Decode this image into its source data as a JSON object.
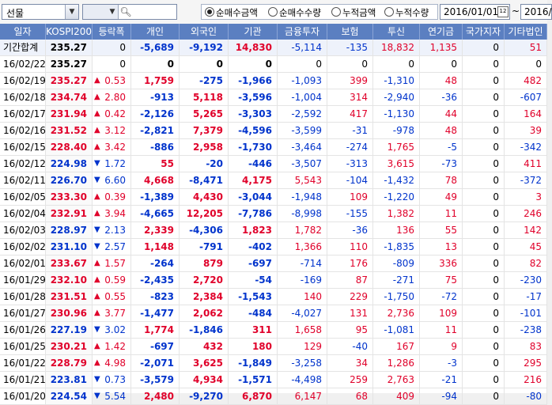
{
  "toolbar": {
    "market_select": "선물",
    "search_placeholder": "",
    "radios": [
      {
        "label": "순매수금액",
        "selected": true
      },
      {
        "label": "순매수수량",
        "selected": false
      },
      {
        "label": "누적금액",
        "selected": false
      },
      {
        "label": "누적수량",
        "selected": false
      }
    ],
    "date_from": "2016/01/01",
    "date_sep": "~",
    "date_to": "2016/"
  },
  "columns": [
    "일자",
    "KOSPI200",
    "등락폭",
    "개인",
    "외국인",
    "기관",
    "금융투자",
    "보험",
    "투신",
    "연기금",
    "국가지자",
    "기타법인"
  ],
  "summary_rows": [
    {
      "date": "기간합계",
      "kospi": "235.27",
      "chg_dir": "",
      "chg": "0",
      "c": [
        "-5,689",
        "-9,192",
        "14,830",
        "-5,114",
        "-135",
        "18,832",
        "1,135",
        "0",
        "51"
      ],
      "s": [
        "b",
        "b",
        "r",
        "b",
        "b",
        "r",
        "r",
        "k",
        "r"
      ]
    },
    {
      "date": "16/02/22",
      "kospi": "235.27",
      "chg_dir": "",
      "chg": "0",
      "c": [
        "0",
        "0",
        "0",
        "0",
        "0",
        "0",
        "0",
        "0",
        "0"
      ],
      "s": [
        "k",
        "k",
        "k",
        "k",
        "k",
        "k",
        "k",
        "k",
        "k"
      ]
    }
  ],
  "rows": [
    {
      "date": "16/02/19",
      "kospi": "235.27",
      "kc": "r",
      "chg_dir": "▲",
      "chg": "0.53",
      "c": [
        "1,759",
        "-275",
        "-1,966",
        "-1,093",
        "399",
        "-1,310",
        "48",
        "0",
        "482"
      ],
      "s": [
        "r",
        "b",
        "b",
        "b",
        "r",
        "b",
        "r",
        "k",
        "r"
      ]
    },
    {
      "date": "16/02/18",
      "kospi": "234.74",
      "kc": "r",
      "chg_dir": "▲",
      "chg": "2.80",
      "c": [
        "-913",
        "5,118",
        "-3,596",
        "-1,004",
        "314",
        "-2,940",
        "-36",
        "0",
        "-607"
      ],
      "s": [
        "b",
        "r",
        "b",
        "b",
        "r",
        "b",
        "b",
        "k",
        "b"
      ]
    },
    {
      "date": "16/02/17",
      "kospi": "231.94",
      "kc": "r",
      "chg_dir": "▲",
      "chg": "0.42",
      "c": [
        "-2,126",
        "5,265",
        "-3,303",
        "-2,592",
        "417",
        "-1,130",
        "44",
        "0",
        "164"
      ],
      "s": [
        "b",
        "r",
        "b",
        "b",
        "r",
        "b",
        "r",
        "k",
        "r"
      ]
    },
    {
      "date": "16/02/16",
      "kospi": "231.52",
      "kc": "r",
      "chg_dir": "▲",
      "chg": "3.12",
      "c": [
        "-2,821",
        "7,379",
        "-4,596",
        "-3,599",
        "-31",
        "-978",
        "48",
        "0",
        "39"
      ],
      "s": [
        "b",
        "r",
        "b",
        "b",
        "b",
        "b",
        "r",
        "k",
        "r"
      ]
    },
    {
      "date": "16/02/15",
      "kospi": "228.40",
      "kc": "r",
      "chg_dir": "▲",
      "chg": "3.42",
      "c": [
        "-886",
        "2,958",
        "-1,730",
        "-3,464",
        "-274",
        "1,765",
        "-5",
        "0",
        "-342"
      ],
      "s": [
        "b",
        "r",
        "b",
        "b",
        "b",
        "r",
        "b",
        "k",
        "b"
      ]
    },
    {
      "date": "16/02/12",
      "kospi": "224.98",
      "kc": "b",
      "chg_dir": "▼",
      "chg": "1.72",
      "c": [
        "55",
        "-20",
        "-446",
        "-3,507",
        "-313",
        "3,615",
        "-73",
        "0",
        "411"
      ],
      "s": [
        "r",
        "b",
        "b",
        "b",
        "b",
        "r",
        "b",
        "k",
        "r"
      ]
    },
    {
      "date": "16/02/11",
      "kospi": "226.70",
      "kc": "b",
      "chg_dir": "▼",
      "chg": "6.60",
      "c": [
        "4,668",
        "-8,471",
        "4,175",
        "5,543",
        "-104",
        "-1,432",
        "78",
        "0",
        "-372"
      ],
      "s": [
        "r",
        "b",
        "r",
        "r",
        "b",
        "b",
        "r",
        "k",
        "b"
      ]
    },
    {
      "date": "16/02/05",
      "kospi": "233.30",
      "kc": "r",
      "chg_dir": "▲",
      "chg": "0.39",
      "c": [
        "-1,389",
        "4,430",
        "-3,044",
        "-1,948",
        "109",
        "-1,220",
        "49",
        "0",
        "3"
      ],
      "s": [
        "b",
        "r",
        "b",
        "b",
        "r",
        "b",
        "r",
        "k",
        "r"
      ]
    },
    {
      "date": "16/02/04",
      "kospi": "232.91",
      "kc": "r",
      "chg_dir": "▲",
      "chg": "3.94",
      "c": [
        "-4,665",
        "12,205",
        "-7,786",
        "-8,998",
        "-155",
        "1,382",
        "11",
        "0",
        "246"
      ],
      "s": [
        "b",
        "r",
        "b",
        "b",
        "b",
        "r",
        "r",
        "k",
        "r"
      ]
    },
    {
      "date": "16/02/03",
      "kospi": "228.97",
      "kc": "b",
      "chg_dir": "▼",
      "chg": "2.13",
      "c": [
        "2,339",
        "-4,306",
        "1,823",
        "1,782",
        "-36",
        "136",
        "55",
        "0",
        "142"
      ],
      "s": [
        "r",
        "b",
        "r",
        "r",
        "b",
        "r",
        "r",
        "k",
        "r"
      ]
    },
    {
      "date": "16/02/02",
      "kospi": "231.10",
      "kc": "b",
      "chg_dir": "▼",
      "chg": "2.57",
      "c": [
        "1,148",
        "-791",
        "-402",
        "1,366",
        "110",
        "-1,835",
        "13",
        "0",
        "45"
      ],
      "s": [
        "r",
        "b",
        "b",
        "r",
        "r",
        "b",
        "r",
        "k",
        "r"
      ]
    },
    {
      "date": "16/02/01",
      "kospi": "233.67",
      "kc": "r",
      "chg_dir": "▲",
      "chg": "1.57",
      "c": [
        "-264",
        "879",
        "-697",
        "-714",
        "176",
        "-809",
        "336",
        "0",
        "82"
      ],
      "s": [
        "b",
        "r",
        "b",
        "b",
        "r",
        "b",
        "r",
        "k",
        "r"
      ]
    },
    {
      "date": "16/01/29",
      "kospi": "232.10",
      "kc": "r",
      "chg_dir": "▲",
      "chg": "0.59",
      "c": [
        "-2,435",
        "2,720",
        "-54",
        "-169",
        "87",
        "-271",
        "75",
        "0",
        "-230"
      ],
      "s": [
        "b",
        "r",
        "b",
        "b",
        "r",
        "b",
        "r",
        "k",
        "b"
      ]
    },
    {
      "date": "16/01/28",
      "kospi": "231.51",
      "kc": "r",
      "chg_dir": "▲",
      "chg": "0.55",
      "c": [
        "-823",
        "2,384",
        "-1,543",
        "140",
        "229",
        "-1,750",
        "-72",
        "0",
        "-17"
      ],
      "s": [
        "b",
        "r",
        "b",
        "r",
        "r",
        "b",
        "b",
        "k",
        "b"
      ]
    },
    {
      "date": "16/01/27",
      "kospi": "230.96",
      "kc": "r",
      "chg_dir": "▲",
      "chg": "3.77",
      "c": [
        "-1,477",
        "2,062",
        "-484",
        "-4,027",
        "131",
        "2,736",
        "109",
        "0",
        "-101"
      ],
      "s": [
        "b",
        "r",
        "b",
        "b",
        "r",
        "r",
        "r",
        "k",
        "b"
      ]
    },
    {
      "date": "16/01/26",
      "kospi": "227.19",
      "kc": "b",
      "chg_dir": "▼",
      "chg": "3.02",
      "c": [
        "1,774",
        "-1,846",
        "311",
        "1,658",
        "95",
        "-1,081",
        "11",
        "0",
        "-238"
      ],
      "s": [
        "r",
        "b",
        "r",
        "r",
        "r",
        "b",
        "r",
        "k",
        "b"
      ]
    },
    {
      "date": "16/01/25",
      "kospi": "230.21",
      "kc": "r",
      "chg_dir": "▲",
      "chg": "1.42",
      "c": [
        "-697",
        "432",
        "180",
        "129",
        "-40",
        "167",
        "9",
        "0",
        "83"
      ],
      "s": [
        "b",
        "r",
        "r",
        "r",
        "b",
        "r",
        "r",
        "k",
        "r"
      ]
    },
    {
      "date": "16/01/22",
      "kospi": "228.79",
      "kc": "r",
      "chg_dir": "▲",
      "chg": "4.98",
      "c": [
        "-2,071",
        "3,625",
        "-1,849",
        "-3,258",
        "34",
        "1,286",
        "-3",
        "0",
        "295"
      ],
      "s": [
        "b",
        "r",
        "b",
        "b",
        "r",
        "r",
        "b",
        "k",
        "r"
      ]
    },
    {
      "date": "16/01/21",
      "kospi": "223.81",
      "kc": "b",
      "chg_dir": "▼",
      "chg": "0.73",
      "c": [
        "-3,579",
        "4,934",
        "-1,571",
        "-4,498",
        "259",
        "2,763",
        "-21",
        "0",
        "216"
      ],
      "s": [
        "b",
        "r",
        "b",
        "b",
        "r",
        "r",
        "b",
        "k",
        "r"
      ]
    },
    {
      "date": "16/01/20",
      "kospi": "224.54",
      "kc": "b",
      "chg_dir": "▼",
      "chg": "5.54",
      "c": [
        "2,480",
        "-9,270",
        "6,870",
        "6,147",
        "68",
        "409",
        "-94",
        "0",
        "-80"
      ],
      "s": [
        "r",
        "b",
        "r",
        "r",
        "r",
        "r",
        "b",
        "k",
        "b"
      ]
    }
  ]
}
